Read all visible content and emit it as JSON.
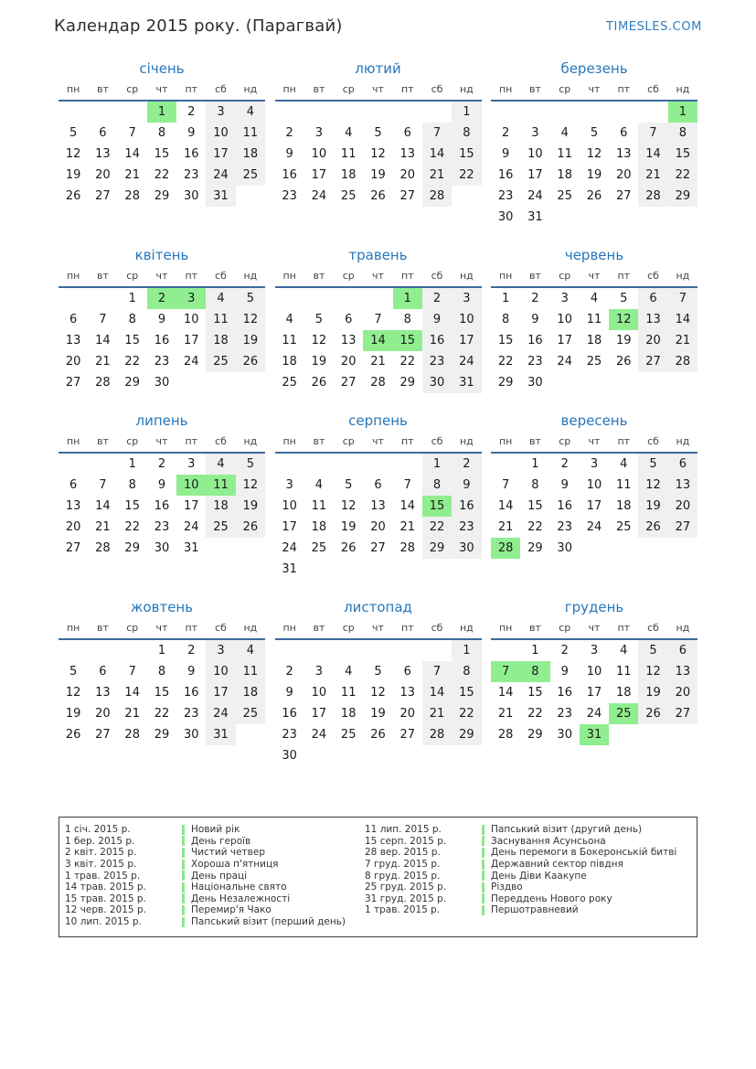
{
  "page": {
    "title": "Календар 2015 року. (Парагвай)",
    "site": "TIMESLES.COM"
  },
  "colors": {
    "holiday": "#90ee90",
    "weekend": "#f0f0f0",
    "month_title_blue": "#2677bb",
    "rule_blue": "#3d6a9e",
    "site_blue": "#2e7cc3",
    "legend_tick_green": "#8ce68c"
  },
  "calendar": {
    "year": "2015",
    "day_headers": [
      "пн",
      "вт",
      "ср",
      "чт",
      "пт",
      "сб",
      "нд"
    ],
    "weekend_columns": [
      5,
      6
    ],
    "months": [
      {
        "name": "січень",
        "start": 3,
        "days": 31,
        "holidays": [
          1
        ]
      },
      {
        "name": "лютий",
        "start": 6,
        "days": 28,
        "holidays": []
      },
      {
        "name": "березень",
        "start": 6,
        "days": 31,
        "holidays": [
          1
        ]
      },
      {
        "name": "квітень",
        "start": 2,
        "days": 30,
        "holidays": [
          2,
          3
        ]
      },
      {
        "name": "травень",
        "start": 4,
        "days": 31,
        "holidays": [
          1,
          14,
          15
        ]
      },
      {
        "name": "червень",
        "start": 0,
        "days": 30,
        "holidays": [
          12
        ]
      },
      {
        "name": "липень",
        "start": 2,
        "days": 31,
        "holidays": [
          10,
          11
        ]
      },
      {
        "name": "серпень",
        "start": 5,
        "days": 31,
        "holidays": [
          15
        ]
      },
      {
        "name": "вересень",
        "start": 1,
        "days": 30,
        "holidays": [
          28
        ]
      },
      {
        "name": "жовтень",
        "start": 3,
        "days": 31,
        "holidays": []
      },
      {
        "name": "листопад",
        "start": 6,
        "days": 30,
        "holidays": []
      },
      {
        "name": "грудень",
        "start": 1,
        "days": 31,
        "holidays": [
          7,
          8,
          25,
          31
        ]
      }
    ]
  },
  "legend": {
    "columns": [
      {
        "entries": [
          {
            "date": "1 січ. 2015 р.",
            "name": "Новий рік"
          },
          {
            "date": "1 бер. 2015 р.",
            "name": "День героїв"
          },
          {
            "date": "2 квіт. 2015 р.",
            "name": "Чистий четвер"
          },
          {
            "date": "3 квіт. 2015 р.",
            "name": "Хороша п'ятниця"
          },
          {
            "date": "1 трав. 2015 р.",
            "name": "День праці"
          },
          {
            "date": "14 трав. 2015 р.",
            "name": "Національне свято"
          },
          {
            "date": "15 трав. 2015 р.",
            "name": "День Незалежності"
          },
          {
            "date": "12 черв. 2015 р.",
            "name": "Перемир'я Чако"
          },
          {
            "date": "10 лип. 2015 р.",
            "name": "Папський візит (перший день)"
          }
        ]
      },
      {
        "entries": [
          {
            "date": "11 лип. 2015 р.",
            "name": "Папський візит (другий день)"
          },
          {
            "date": "15 серп. 2015 р.",
            "name": "Заснування Асунсьона"
          },
          {
            "date": "28 вер. 2015 р.",
            "name": "День перемоги в Бокеронській битві"
          },
          {
            "date": "7 груд. 2015 р.",
            "name": "Державний сектор півдня"
          },
          {
            "date": "8 груд. 2015 р.",
            "name": "День Діви Каакупе"
          },
          {
            "date": "25 груд. 2015 р.",
            "name": "Різдво"
          },
          {
            "date": "31 груд. 2015 р.",
            "name": "Переддень Нового року"
          },
          {
            "date": "1 трав. 2015 р.",
            "name": "Першотравневий"
          }
        ]
      }
    ]
  }
}
